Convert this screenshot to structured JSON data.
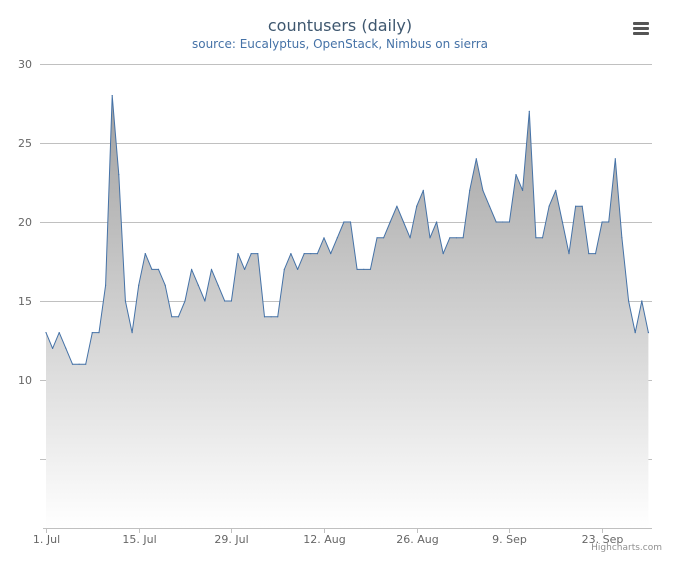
{
  "title": "countusers (daily)",
  "subtitle": "source: Eucalyptus, OpenStack, Nimbus on sierra",
  "credits": "Highcharts.com",
  "menu_icon": "hamburger-menu-icon",
  "colors": {
    "line": "#4572a7",
    "area_top": "#a0a0a0",
    "area_bottom": "#ffffff",
    "grid": "#c0c0c0",
    "axis_text": "#666666"
  },
  "chart_data": {
    "type": "area",
    "title": "countusers (daily)",
    "subtitle": "source: Eucalyptus, OpenStack, Nimbus on sierra",
    "x_tick_labels": [
      "1. Jul",
      "15. Jul",
      "29. Jul",
      "12. Aug",
      "26. Aug",
      "9. Sep",
      "23. Sep"
    ],
    "x_tick_days": [
      0,
      14,
      28,
      42,
      56,
      70,
      84
    ],
    "y_tick_labels": [
      "10",
      "15",
      "20",
      "25",
      "30"
    ],
    "y_ticks": [
      10,
      15,
      20,
      25,
      30
    ],
    "ylim": [
      0,
      30
    ],
    "grid": true,
    "legend": "none",
    "series": [
      {
        "x": [
          "2013-07-01",
          "2013-07-02",
          "2013-07-03",
          "2013-07-04",
          "2013-07-05",
          "2013-07-06",
          "2013-07-07",
          "2013-07-08",
          "2013-07-09",
          "2013-07-10",
          "2013-07-11",
          "2013-07-12",
          "2013-07-13",
          "2013-07-14",
          "2013-07-15",
          "2013-07-16",
          "2013-07-17",
          "2013-07-18",
          "2013-07-19",
          "2013-07-20",
          "2013-07-21",
          "2013-07-22",
          "2013-07-23",
          "2013-07-24",
          "2013-07-25",
          "2013-07-26",
          "2013-07-27",
          "2013-07-28",
          "2013-07-29",
          "2013-07-30",
          "2013-07-31",
          "2013-08-01",
          "2013-08-02",
          "2013-08-03",
          "2013-08-04",
          "2013-08-05",
          "2013-08-06",
          "2013-08-07",
          "2013-08-08",
          "2013-08-09",
          "2013-08-10",
          "2013-08-11",
          "2013-08-12",
          "2013-08-13",
          "2013-08-14",
          "2013-08-15",
          "2013-08-16",
          "2013-08-17",
          "2013-08-18",
          "2013-08-19",
          "2013-08-20",
          "2013-08-21",
          "2013-08-22",
          "2013-08-23",
          "2013-08-24",
          "2013-08-25",
          "2013-08-26",
          "2013-08-27",
          "2013-08-28",
          "2013-08-29",
          "2013-08-30",
          "2013-08-31",
          "2013-09-01",
          "2013-09-02",
          "2013-09-03",
          "2013-09-04",
          "2013-09-05",
          "2013-09-06",
          "2013-09-07",
          "2013-09-08",
          "2013-09-09",
          "2013-09-10",
          "2013-09-11",
          "2013-09-12",
          "2013-09-13",
          "2013-09-14",
          "2013-09-15",
          "2013-09-16",
          "2013-09-17",
          "2013-09-18",
          "2013-09-19",
          "2013-09-20",
          "2013-09-21",
          "2013-09-22",
          "2013-09-23",
          "2013-09-24",
          "2013-09-25",
          "2013-09-26",
          "2013-09-27",
          "2013-09-28",
          "2013-09-29",
          "2013-09-30"
        ],
        "values": [
          13,
          12,
          13,
          12,
          11,
          11,
          11,
          13,
          13,
          16,
          28,
          23,
          15,
          13,
          16,
          18,
          17,
          17,
          16,
          14,
          14,
          15,
          17,
          16,
          15,
          17,
          16,
          15,
          15,
          18,
          17,
          18,
          18,
          14,
          14,
          14,
          17,
          18,
          17,
          18,
          18,
          18,
          19,
          18,
          19,
          20,
          20,
          17,
          17,
          17,
          19,
          19,
          20,
          21,
          20,
          19,
          21,
          22,
          19,
          20,
          18,
          19,
          19,
          19,
          22,
          24,
          22,
          21,
          20,
          20,
          20,
          23,
          22,
          27,
          19,
          19,
          21,
          22,
          20,
          18,
          21,
          21,
          18,
          18,
          20,
          20,
          24,
          19,
          15,
          13,
          15,
          13
        ]
      }
    ]
  }
}
